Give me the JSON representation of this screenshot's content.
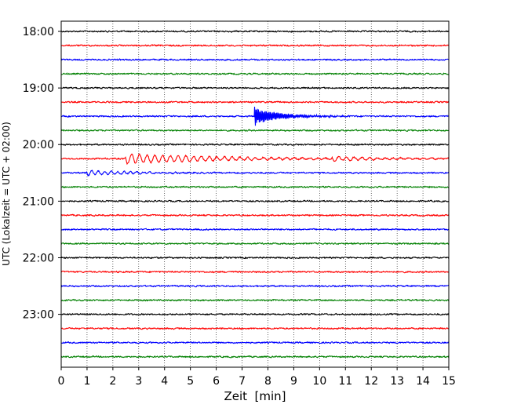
{
  "chart_data": {
    "type": "line",
    "title": "",
    "xlabel": "Zeit  [min]",
    "ylabel": "UTC (Lokalzeit = UTC + 02:00)",
    "xlim": [
      0,
      15
    ],
    "x_ticks": [
      0,
      1,
      2,
      3,
      4,
      5,
      6,
      7,
      8,
      9,
      10,
      11,
      12,
      13,
      14,
      15
    ],
    "y_tick_labels": [
      "18:00",
      "19:00",
      "20:00",
      "21:00",
      "22:00",
      "23:00"
    ],
    "grid": "vertical dotted lines at each minute",
    "trace_interval_minutes": 15,
    "trace_colors_cycle": [
      "#000000",
      "#ff0000",
      "#0000ff",
      "#008000"
    ],
    "traces": [
      {
        "start": "18:00",
        "color": "#000000"
      },
      {
        "start": "18:15",
        "color": "#ff0000"
      },
      {
        "start": "18:30",
        "color": "#0000ff"
      },
      {
        "start": "18:45",
        "color": "#008000"
      },
      {
        "start": "19:00",
        "color": "#000000"
      },
      {
        "start": "19:15",
        "color": "#ff0000"
      },
      {
        "start": "19:30",
        "color": "#0000ff",
        "events": [
          {
            "at_min": 7.5,
            "amplitude": 10,
            "decay_min": 1.0
          }
        ]
      },
      {
        "start": "19:45",
        "color": "#008000"
      },
      {
        "start": "20:00",
        "color": "#000000"
      },
      {
        "start": "20:15",
        "color": "#ff0000",
        "events": [
          {
            "at_min": 2.5,
            "amplitude": 6,
            "decay_min": 4.0,
            "period_min": 0.3
          },
          {
            "at_min": 10.5,
            "amplitude": 3,
            "decay_min": 2.5,
            "period_min": 0.3
          }
        ]
      },
      {
        "start": "20:30",
        "color": "#0000ff",
        "events": [
          {
            "at_min": 1.0,
            "amplitude": 3,
            "decay_min": 2.0,
            "period_min": 0.25
          }
        ]
      },
      {
        "start": "20:45",
        "color": "#008000"
      },
      {
        "start": "21:00",
        "color": "#000000"
      },
      {
        "start": "21:15",
        "color": "#ff0000"
      },
      {
        "start": "21:30",
        "color": "#0000ff"
      },
      {
        "start": "21:45",
        "color": "#008000"
      },
      {
        "start": "22:00",
        "color": "#000000"
      },
      {
        "start": "22:15",
        "color": "#ff0000"
      },
      {
        "start": "22:30",
        "color": "#0000ff"
      },
      {
        "start": "22:45",
        "color": "#008000"
      },
      {
        "start": "23:00",
        "color": "#000000"
      },
      {
        "start": "23:15",
        "color": "#ff0000"
      },
      {
        "start": "23:30",
        "color": "#0000ff"
      },
      {
        "start": "23:45",
        "color": "#008000"
      }
    ]
  }
}
